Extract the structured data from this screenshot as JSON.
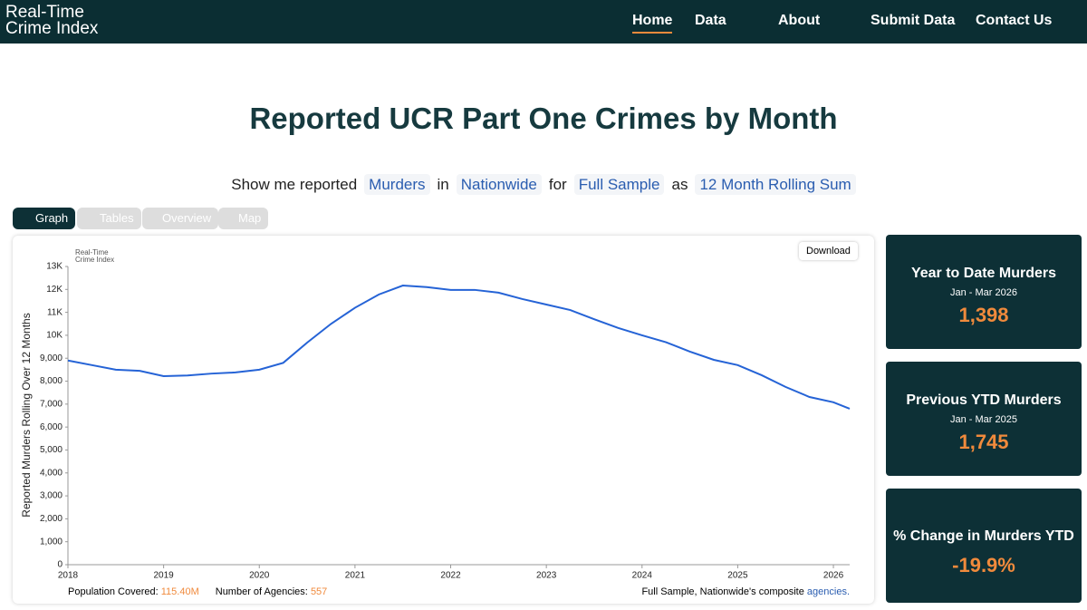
{
  "header": {
    "logo": [
      "Real-Time",
      "Crime Index"
    ],
    "nav": [
      "Home",
      "Data",
      "About",
      "Submit Data",
      "Contact Us"
    ]
  },
  "page_title": "Reported UCR Part One Crimes by Month",
  "filter": [
    "Show me reported",
    "Murders",
    "in",
    "Nationwide",
    "for",
    "Full Sample",
    "as",
    "12 Month Rolling Sum"
  ],
  "tabs": [
    "Graph",
    "Tables",
    "Overview",
    "Map"
  ],
  "download": "Download",
  "chart_data": {
    "type": "line",
    "y_label": "Reported Murders Rolling Over 12 Months",
    "x": [
      2018,
      2018.25,
      2018.5,
      2018.75,
      2019,
      2019.25,
      2019.5,
      2019.75,
      2020,
      2020.25,
      2020.5,
      2020.75,
      2021,
      2021.25,
      2021.5,
      2021.75,
      2022,
      2022.25,
      2022.5,
      2022.75,
      2023,
      2023.25,
      2023.5,
      2023.75,
      2024,
      2024.25,
      2024.5,
      2024.75,
      2025,
      2025.25,
      2025.5,
      2025.75,
      2026,
      2026.17
    ],
    "series": [
      {
        "color": "#2563d6",
        "values": [
          8900,
          8700,
          8500,
          8450,
          8220,
          8250,
          8330,
          8380,
          8500,
          8800,
          9680,
          10500,
          11200,
          11780,
          12170,
          12100,
          11980,
          11980,
          11860,
          11580,
          11340,
          11100,
          10700,
          10320,
          10000,
          9700,
          9290,
          8930,
          8700,
          8260,
          7750,
          7310,
          7080,
          6800
        ]
      }
    ],
    "xlim": [
      2018,
      2026.17
    ],
    "xticks": [
      2018,
      2019,
      2020,
      2021,
      2022,
      2023,
      2024,
      2025,
      2026
    ],
    "ylim": [
      0,
      13000
    ],
    "yticks": [
      0,
      {
        "value": 1000,
        "label": "1,000"
      },
      {
        "value": 2000,
        "label": "2,000"
      },
      {
        "value": 3000,
        "label": "3,000"
      },
      {
        "value": 4000,
        "label": "4,000"
      },
      {
        "value": 5000,
        "label": "5,000"
      },
      {
        "value": 6000,
        "label": "6,000"
      },
      {
        "value": 7000,
        "label": "7,000"
      },
      {
        "value": 8000,
        "label": "8,000"
      },
      {
        "value": 9000,
        "label": "9,000"
      },
      {
        "value": 10000,
        "label": "10K"
      },
      {
        "value": 11000,
        "label": "11K"
      },
      {
        "value": 12000,
        "label": "12K"
      },
      {
        "value": 13000,
        "label": "13K"
      }
    ],
    "grid": false
  },
  "footer": {
    "population_label": "Population Covered:",
    "population": "115.40M",
    "agencies_label": "Number of Agencies:",
    "agencies": "557",
    "note": "Full Sample, Nationwide's composite",
    "note_link": "agencies."
  },
  "stats": [
    {
      "title": "Year to Date Murders",
      "period": "Jan - Mar 2026",
      "value": "1,398"
    },
    {
      "title": "Previous YTD Murders",
      "period": "Jan - Mar 2025",
      "value": "1,745"
    },
    {
      "title": "% Change in Murders YTD",
      "period": "",
      "value": "-19.9%"
    }
  ]
}
